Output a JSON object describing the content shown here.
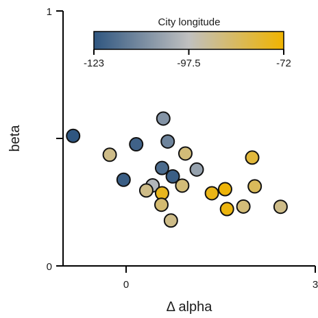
{
  "chart_data": {
    "type": "scatter",
    "xlabel": "Δ alpha",
    "ylabel": "beta",
    "xlim": [
      -1,
      3
    ],
    "ylim": [
      0,
      1
    ],
    "x_ticks": [
      0,
      3
    ],
    "x_tick_labels": [
      "0",
      "3"
    ],
    "y_ticks": [
      0,
      0.5,
      1
    ],
    "y_tick_labels": [
      "0",
      "",
      "1"
    ],
    "grid": false,
    "colorbar": {
      "title": "City longitude",
      "min": -123,
      "max": -72,
      "ticks": [
        -123,
        -97.5,
        -72
      ],
      "tick_labels": [
        "-123",
        "-97.5",
        "-72"
      ],
      "colors": [
        "#2f5680",
        "#c0c0c0",
        "#f0b400"
      ],
      "placement": "top-center"
    },
    "points": [
      {
        "x": -0.84,
        "y": 0.51,
        "c": -123
      },
      {
        "x": -0.26,
        "y": 0.436,
        "c": -90
      },
      {
        "x": 0.16,
        "y": 0.477,
        "c": -120
      },
      {
        "x": 0.59,
        "y": 0.578,
        "c": -108
      },
      {
        "x": 0.66,
        "y": 0.488,
        "c": -112
      },
      {
        "x": 0.94,
        "y": 0.441,
        "c": -88
      },
      {
        "x": 1.12,
        "y": 0.378,
        "c": -105
      },
      {
        "x": 0.57,
        "y": 0.384,
        "c": -118
      },
      {
        "x": 0.74,
        "y": 0.351,
        "c": -121
      },
      {
        "x": -0.04,
        "y": 0.338,
        "c": -121
      },
      {
        "x": 0.42,
        "y": 0.316,
        "c": -100
      },
      {
        "x": 0.32,
        "y": 0.296,
        "c": -90
      },
      {
        "x": 0.57,
        "y": 0.285,
        "c": -76
      },
      {
        "x": 0.89,
        "y": 0.315,
        "c": -88
      },
      {
        "x": 0.56,
        "y": 0.24,
        "c": -87
      },
      {
        "x": 0.71,
        "y": 0.178,
        "c": -90
      },
      {
        "x": 1.36,
        "y": 0.285,
        "c": -75
      },
      {
        "x": 1.57,
        "y": 0.301,
        "c": -73
      },
      {
        "x": 1.6,
        "y": 0.223,
        "c": -74
      },
      {
        "x": 1.86,
        "y": 0.233,
        "c": -88
      },
      {
        "x": 2.0,
        "y": 0.425,
        "c": -80
      },
      {
        "x": 2.04,
        "y": 0.312,
        "c": -84
      },
      {
        "x": 2.45,
        "y": 0.232,
        "c": -90
      }
    ]
  }
}
